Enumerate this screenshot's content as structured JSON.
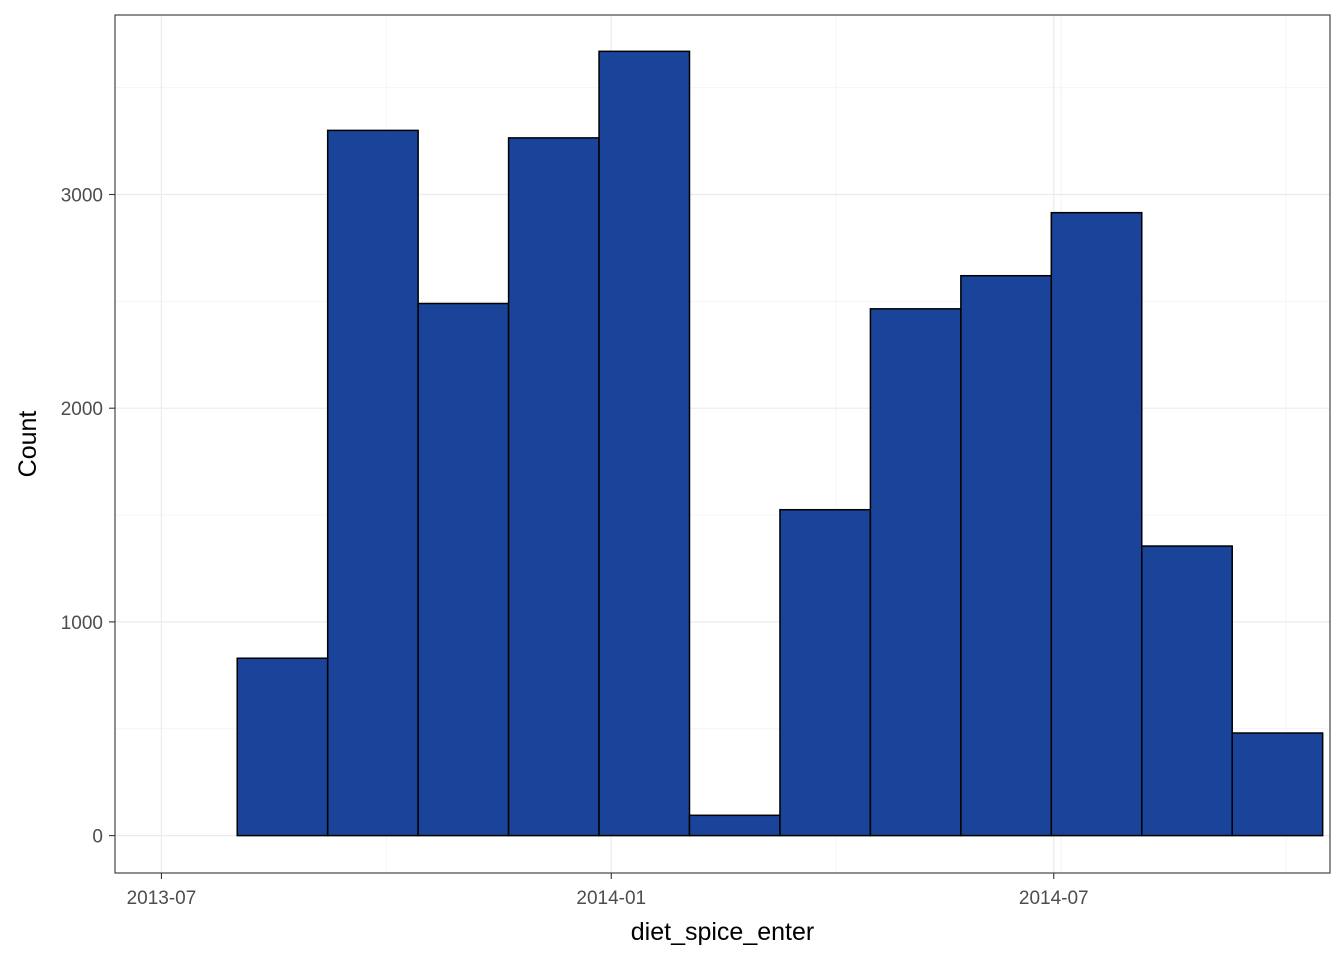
{
  "chart_data": {
    "type": "bar",
    "subtype": "histogram",
    "xlabel": "diet_spice_enter",
    "ylabel": "Count",
    "x_axis_type": "date",
    "x_range": [
      "2013-06-12",
      "2014-10-22"
    ],
    "ylim": [
      -175,
      3840
    ],
    "x_ticks": [
      {
        "date": "2013-07-01",
        "label": "2013-07"
      },
      {
        "date": "2014-01-01",
        "label": "2014-01"
      },
      {
        "date": "2014-07-01",
        "label": "2014-07"
      }
    ],
    "y_ticks": [
      {
        "value": 0,
        "label": "0"
      },
      {
        "value": 1000,
        "label": "1000"
      },
      {
        "value": 2000,
        "label": "2000"
      },
      {
        "value": 3000,
        "label": "3000"
      }
    ],
    "grid": true,
    "bins": [
      {
        "start": "2013-08-01",
        "end": "2013-09-07",
        "count": 830
      },
      {
        "start": "2013-09-07",
        "end": "2013-10-14",
        "count": 3300
      },
      {
        "start": "2013-10-14",
        "end": "2013-11-20",
        "count": 2490
      },
      {
        "start": "2013-11-20",
        "end": "2013-12-27",
        "count": 3265
      },
      {
        "start": "2013-12-27",
        "end": "2014-02-02",
        "count": 3670
      },
      {
        "start": "2014-02-02",
        "end": "2014-03-11",
        "count": 95
      },
      {
        "start": "2014-03-11",
        "end": "2014-04-17",
        "count": 1525
      },
      {
        "start": "2014-04-17",
        "end": "2014-05-24",
        "count": 2465
      },
      {
        "start": "2014-05-24",
        "end": "2014-06-30",
        "count": 2620
      },
      {
        "start": "2014-06-30",
        "end": "2014-08-06",
        "count": 2915
      },
      {
        "start": "2014-08-06",
        "end": "2014-09-12",
        "count": 1355
      },
      {
        "start": "2014-09-12",
        "end": "2014-10-19",
        "count": 480
      }
    ],
    "colors": {
      "fill": "#1a4499",
      "outline": "#000000",
      "panel_border": "#333333",
      "grid_major": "#ebebeb",
      "grid_minor": "#f4f4f4",
      "tick_text": "#4d4d4d"
    }
  }
}
